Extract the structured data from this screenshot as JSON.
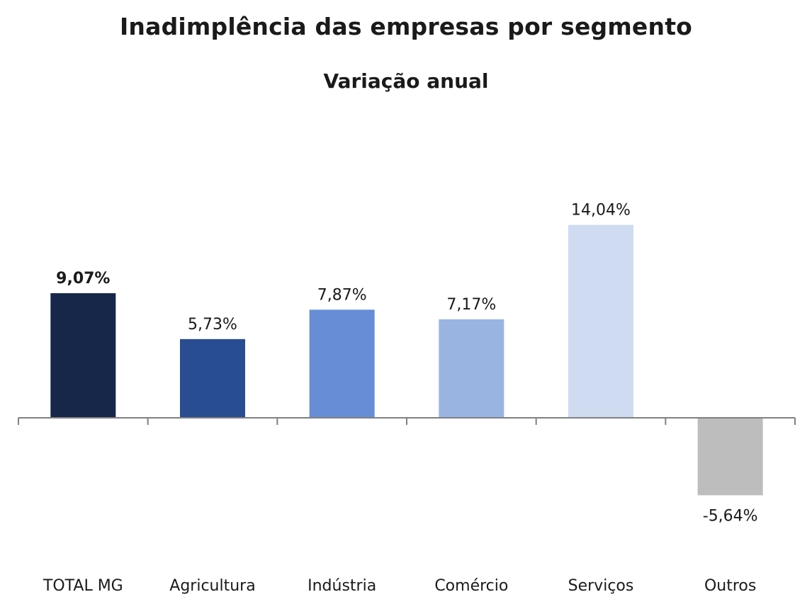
{
  "chart_data": {
    "type": "bar",
    "title": "Inadimplência das empresas por segmento",
    "subtitle": "Variação anual",
    "categories": [
      "TOTAL MG",
      "Agricultura",
      "Indústria",
      "Comércio",
      "Serviços",
      "Outros"
    ],
    "values": [
      9.07,
      5.73,
      7.87,
      7.17,
      14.04,
      -5.64
    ],
    "value_labels": [
      "9,07%",
      "5,73%",
      "7,87%",
      "7,17%",
      "14,04%",
      "-5,64%"
    ],
    "bold_labels": [
      true,
      false,
      false,
      false,
      false,
      false
    ],
    "colors": [
      "#17274a",
      "#284d91",
      "#668dd6",
      "#9ab4e2",
      "#cfdbf1",
      "#bdbdbd"
    ],
    "xlabel": "",
    "ylabel": "",
    "grid": false,
    "legend": "none"
  }
}
